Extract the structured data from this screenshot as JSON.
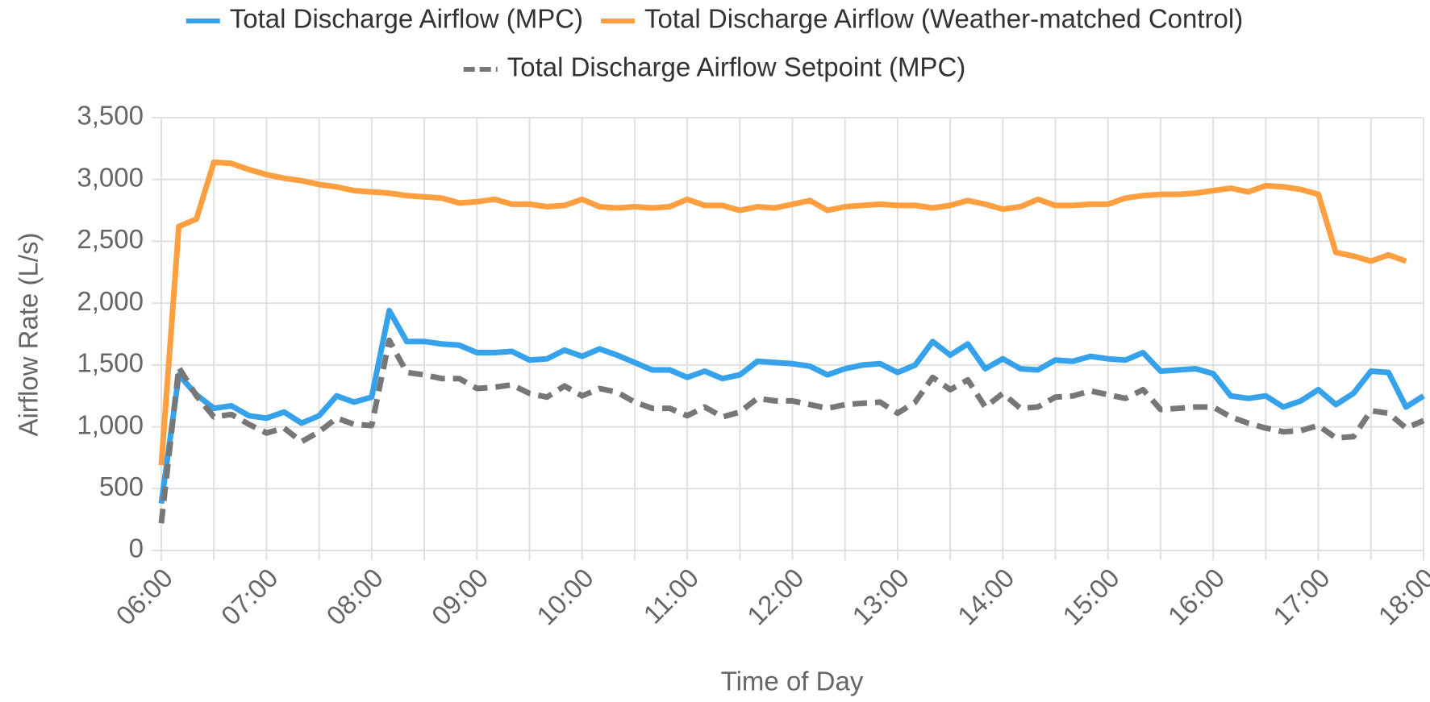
{
  "chart_data": {
    "type": "line",
    "xlabel": "Time of Day",
    "ylabel": "Airflow Rate (L/s)",
    "x": [
      "06:00",
      "06:10",
      "06:20",
      "06:30",
      "06:40",
      "06:50",
      "07:00",
      "07:10",
      "07:20",
      "07:30",
      "07:40",
      "07:50",
      "08:00",
      "08:10",
      "08:20",
      "08:30",
      "08:40",
      "08:50",
      "09:00",
      "09:10",
      "09:20",
      "09:30",
      "09:40",
      "09:50",
      "10:00",
      "10:10",
      "10:20",
      "10:30",
      "10:40",
      "10:50",
      "11:00",
      "11:10",
      "11:20",
      "11:30",
      "11:40",
      "11:50",
      "12:00",
      "12:10",
      "12:20",
      "12:30",
      "12:40",
      "12:50",
      "13:00",
      "13:10",
      "13:20",
      "13:30",
      "13:40",
      "13:50",
      "14:00",
      "14:10",
      "14:20",
      "14:30",
      "14:40",
      "14:50",
      "15:00",
      "15:10",
      "15:20",
      "15:30",
      "15:40",
      "15:50",
      "16:00",
      "16:10",
      "16:20",
      "16:30",
      "16:40",
      "16:50",
      "17:00",
      "17:10",
      "17:20",
      "17:30",
      "17:40",
      "17:50",
      "18:00"
    ],
    "xlim": [
      "06:00",
      "18:00"
    ],
    "xticks": [
      "06:00",
      "07:00",
      "08:00",
      "09:00",
      "10:00",
      "11:00",
      "12:00",
      "13:00",
      "14:00",
      "15:00",
      "16:00",
      "17:00",
      "18:00"
    ],
    "ylim": [
      0,
      3500
    ],
    "yticks": [
      0,
      500,
      {
        "value": 1000,
        "label": "1,000"
      },
      {
        "value": 1500,
        "label": "1,500"
      },
      {
        "value": 2000,
        "label": "2,000"
      },
      {
        "value": 2500,
        "label": "2,500"
      },
      {
        "value": 3000,
        "label": "3,000"
      },
      {
        "value": 3500,
        "label": "3,500"
      }
    ],
    "grid": true,
    "legend": "top",
    "series": [
      {
        "name": "Total Discharge Airflow (MPC)",
        "color": "#36a2eb",
        "dashed": false,
        "values": [
          380,
          1420,
          1260,
          1150,
          1170,
          1090,
          1070,
          1120,
          1030,
          1090,
          1250,
          1200,
          1240,
          1940,
          1690,
          1690,
          1670,
          1660,
          1600,
          1600,
          1610,
          1540,
          1550,
          1620,
          1570,
          1630,
          1580,
          1520,
          1460,
          1460,
          1400,
          1450,
          1390,
          1420,
          1530,
          1520,
          1510,
          1490,
          1420,
          1470,
          1500,
          1510,
          1440,
          1500,
          1690,
          1580,
          1670,
          1470,
          1550,
          1470,
          1460,
          1540,
          1530,
          1570,
          1550,
          1540,
          1600,
          1450,
          1460,
          1470,
          1430,
          1250,
          1230,
          1250,
          1160,
          1210,
          1300,
          1180,
          1270,
          1450,
          1440,
          1160,
          1250
        ]
      },
      {
        "name": "Total Discharge Airflow (Weather-matched Control)",
        "color": "#ff9f40",
        "dashed": false,
        "values": [
          690,
          2620,
          2680,
          3140,
          3130,
          3080,
          3040,
          3010,
          2990,
          2960,
          2940,
          2910,
          2900,
          2890,
          2870,
          2860,
          2850,
          2810,
          2820,
          2840,
          2800,
          2800,
          2780,
          2790,
          2840,
          2780,
          2770,
          2780,
          2770,
          2780,
          2840,
          2790,
          2790,
          2750,
          2780,
          2770,
          2800,
          2830,
          2750,
          2780,
          2790,
          2800,
          2790,
          2790,
          2770,
          2790,
          2830,
          2800,
          2760,
          2780,
          2840,
          2790,
          2790,
          2800,
          2800,
          2850,
          2870,
          2880,
          2880,
          2890,
          2910,
          2930,
          2900,
          2950,
          2940,
          2920,
          2880,
          2410,
          2380,
          2340,
          2390,
          2340,
          null
        ]
      },
      {
        "name": "Total Discharge Airflow Setpoint (MPC)",
        "color": "#777777",
        "dashed": true,
        "values": [
          220,
          1480,
          1250,
          1080,
          1100,
          1020,
          950,
          990,
          880,
          960,
          1070,
          1020,
          1010,
          1700,
          1440,
          1420,
          1390,
          1390,
          1310,
          1320,
          1340,
          1270,
          1240,
          1330,
          1250,
          1310,
          1280,
          1200,
          1150,
          1150,
          1090,
          1160,
          1080,
          1120,
          1230,
          1210,
          1210,
          1180,
          1150,
          1180,
          1190,
          1200,
          1110,
          1200,
          1400,
          1300,
          1380,
          1160,
          1270,
          1150,
          1160,
          1240,
          1250,
          1290,
          1260,
          1230,
          1300,
          1140,
          1150,
          1160,
          1160,
          1080,
          1030,
          990,
          960,
          970,
          1010,
          910,
          920,
          1130,
          1110,
          990,
          1050
        ]
      }
    ]
  }
}
